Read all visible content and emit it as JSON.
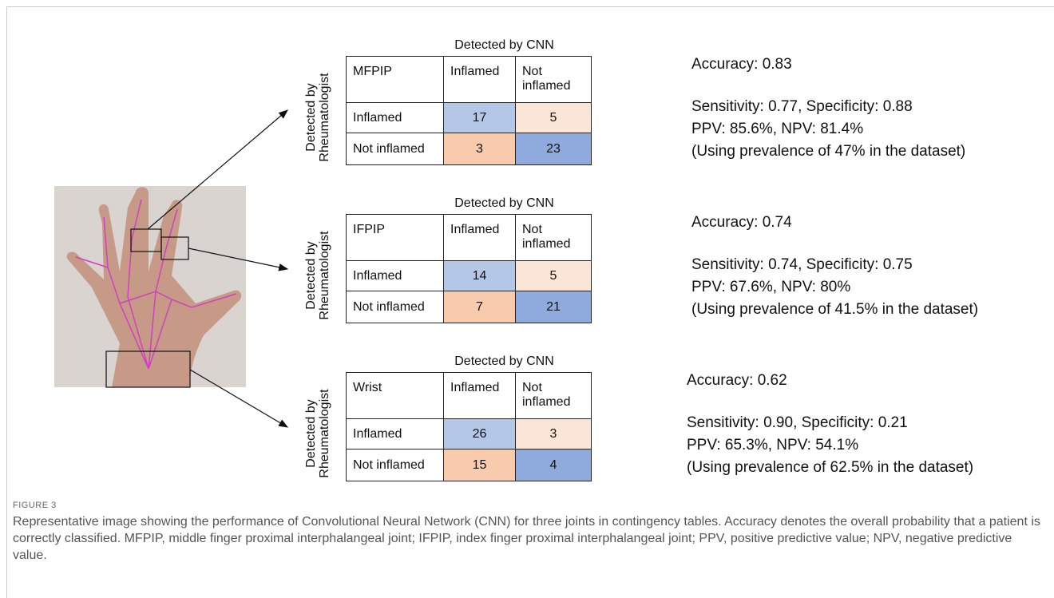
{
  "figure": {
    "panels": [
      {
        "header": "Detected by CNN",
        "side_label": [
          "Detected by",
          "Rheumatologist"
        ],
        "table": [
          [
            "MFPIP",
            "Inflamed",
            "Not inflamed"
          ],
          [
            "Inflamed",
            17,
            5
          ],
          [
            "Not inflamed",
            3,
            23
          ]
        ],
        "metrics": [
          "Accuracy: 0.83",
          "Sensitivity:  0.77, Specificity: 0.88",
          "PPV: 85.6%, NPV: 81.4%",
          "(Using prevalence of 47% in the dataset)"
        ]
      },
      {
        "header": "Detected by CNN",
        "side_label": [
          "Detected by",
          "Rheumatologist"
        ],
        "table": [
          [
            "IFPIP",
            "Inflamed",
            "Not inflamed"
          ],
          [
            "Inflamed",
            14,
            5
          ],
          [
            "Not inflamed",
            7,
            21
          ]
        ],
        "metrics": [
          "Accuracy: 0.74",
          "Sensitivity:  0.74, Specificity: 0.75",
          "PPV: 67.6%, NPV: 80%",
          "(Using prevalence of 41.5% in the dataset)"
        ]
      },
      {
        "header": "Detected by CNN",
        "side_label": [
          "Detected by",
          "Rheumatologist"
        ],
        "table": [
          [
            "Wrist",
            "Inflamed",
            "Not inflamed"
          ],
          [
            "Inflamed",
            26,
            3
          ],
          [
            "Not inflamed",
            15,
            4
          ]
        ],
        "metrics": [
          "Accuracy: 0.62",
          "Sensitivity:  0.90, Specificity: 0.21",
          "PPV: 65.3%, NPV: 54.1%",
          "(Using prevalence of 62.5% in the dataset)"
        ]
      }
    ],
    "label": "FIGURE 3",
    "caption": "Representative image showing the performance of Convolutional Neural Network (CNN) for three joints in contingency tables. Accuracy denotes the overall probability that a patient is correctly classified. MFPIP, middle finger proximal interphalangeal joint; IFPIP, index finger proximal interphalangeal joint; PPV, positive predictive value; NPV, negative predictive value."
  }
}
